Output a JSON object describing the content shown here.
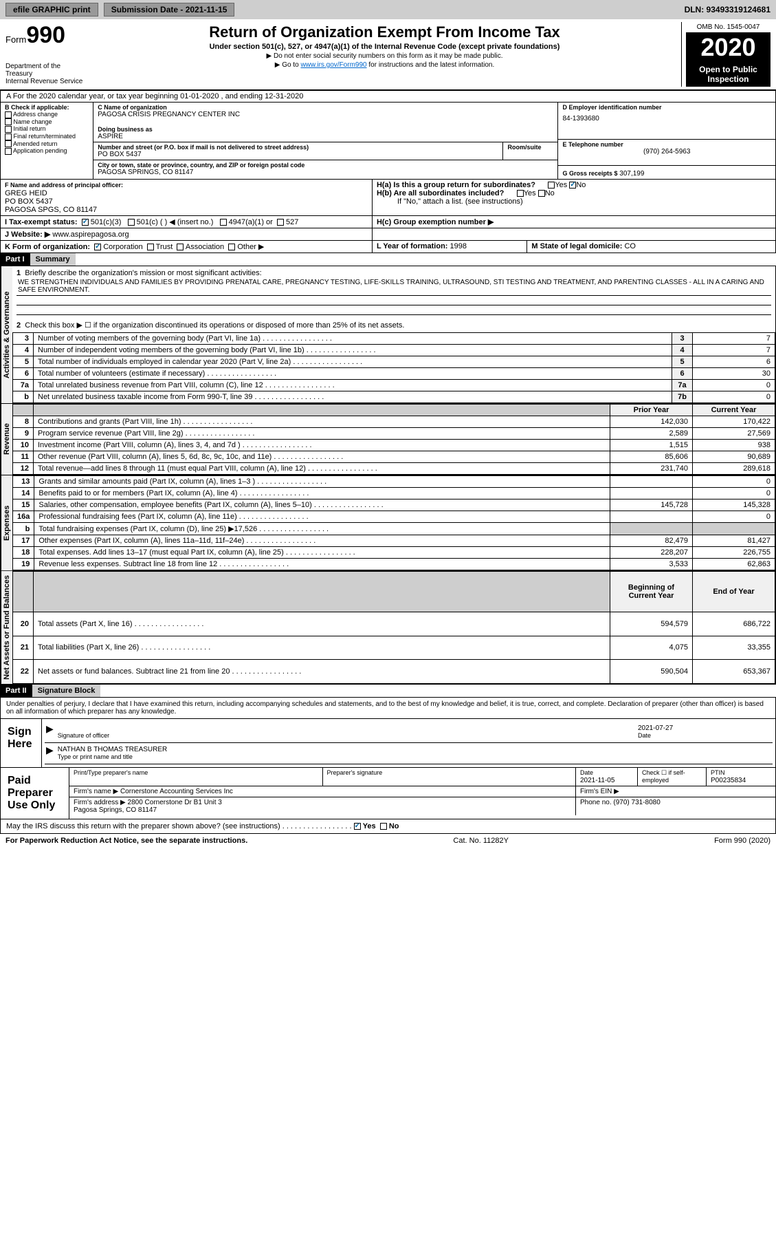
{
  "topbar": {
    "efile": "efile GRAPHIC print",
    "submission_label": "Submission Date - 2021-11-15",
    "dln_label": "DLN: 93493319124681"
  },
  "header": {
    "form_prefix": "Form",
    "form_number": "990",
    "dept": "Department of the Treasury\nInternal Revenue Service",
    "title": "Return of Organization Exempt From Income Tax",
    "subtitle": "Under section 501(c), 527, or 4947(a)(1) of the Internal Revenue Code (except private foundations)",
    "note1": "▶ Do not enter social security numbers on this form as it may be made public.",
    "note2_pre": "▶ Go to ",
    "note2_link": "www.irs.gov/Form990",
    "note2_post": " for instructions and the latest information.",
    "omb": "OMB No. 1545-0047",
    "year": "2020",
    "inspect": "Open to Public Inspection"
  },
  "sectionA": {
    "text_pre": "A For the 2020 calendar year, or tax year beginning ",
    "begin": "01-01-2020",
    "mid": " , and ending ",
    "end": "12-31-2020"
  },
  "secB": {
    "label": "B Check if applicable:",
    "items": [
      "Address change",
      "Name change",
      "Initial return",
      "Final return/terminated",
      "Amended return",
      "Application pending"
    ]
  },
  "secC": {
    "name_label": "C Name of organization",
    "name": "PAGOSA CRISIS PREGNANCY CENTER INC",
    "dba_label": "Doing business as",
    "dba": "ASPIRE",
    "addr_label": "Number and street (or P.O. box if mail is not delivered to street address)",
    "room_label": "Room/suite",
    "addr": "PO BOX 5437",
    "city_label": "City or town, state or province, country, and ZIP or foreign postal code",
    "city": "PAGOSA SPRINGS, CO  81147"
  },
  "secD": {
    "label": "D Employer identification number",
    "ein": "84-1393680"
  },
  "secE": {
    "label": "E Telephone number",
    "phone": "(970) 264-5963"
  },
  "secG": {
    "label": "G Gross receipts $",
    "amount": "307,199"
  },
  "secF": {
    "label": "F Name and address of principal officer:",
    "name": "GREG HEID",
    "addr1": "PO BOX 5437",
    "addr2": "PAGOSA SPGS, CO  81147"
  },
  "secH": {
    "ha_label": "H(a)  Is this a group return for subordinates?",
    "hb_label": "H(b)  Are all subordinates included?",
    "hb_note": "If \"No,\" attach a list. (see instructions)",
    "hc_label": "H(c)  Group exemption number ▶",
    "yes": "Yes",
    "no": "No"
  },
  "secI": {
    "label": "I    Tax-exempt status:",
    "opt1": "501(c)(3)",
    "opt2": "501(c) (  )",
    "opt2_insert": "◀ (insert no.)",
    "opt3": "4947(a)(1) or",
    "opt4": "527"
  },
  "secJ": {
    "label": "J   Website: ▶",
    "url": "www.aspirepagosa.org"
  },
  "secK": {
    "label": "K Form of organization:",
    "opts": [
      "Corporation",
      "Trust",
      "Association",
      "Other ▶"
    ]
  },
  "secL": {
    "label": "L Year of formation:",
    "val": "1998"
  },
  "secM": {
    "label": "M State of legal domicile:",
    "val": "CO"
  },
  "part1": {
    "hdr": "Part I",
    "title": "Summary",
    "q1": "Briefly describe the organization's mission or most significant activities:",
    "q1_text": "WE STRENGTHEN INDIVIDUALS AND FAMILIES BY PROVIDING PRENATAL CARE, PREGNANCY TESTING, LIFE-SKILLS TRAINING, ULTRASOUND, STI TESTING AND TREATMENT, AND PARENTING CLASSES - ALL IN A CARING AND SAFE ENVIRONMENT.",
    "q2": "Check this box ▶ ☐ if the organization discontinued its operations or disposed of more than 25% of its net assets.",
    "rows_gov": [
      {
        "n": "3",
        "d": "Number of voting members of the governing body (Part VI, line 1a)",
        "l": "3",
        "v": "7"
      },
      {
        "n": "4",
        "d": "Number of independent voting members of the governing body (Part VI, line 1b)",
        "l": "4",
        "v": "7"
      },
      {
        "n": "5",
        "d": "Total number of individuals employed in calendar year 2020 (Part V, line 2a)",
        "l": "5",
        "v": "6"
      },
      {
        "n": "6",
        "d": "Total number of volunteers (estimate if necessary)",
        "l": "6",
        "v": "30"
      },
      {
        "n": "7a",
        "d": "Total unrelated business revenue from Part VIII, column (C), line 12",
        "l": "7a",
        "v": "0"
      },
      {
        "n": "b",
        "d": "Net unrelated business taxable income from Form 990-T, line 39",
        "l": "7b",
        "v": "0"
      }
    ],
    "col_prior": "Prior Year",
    "col_current": "Current Year",
    "rows_rev": [
      {
        "n": "8",
        "d": "Contributions and grants (Part VIII, line 1h)",
        "p": "142,030",
        "c": "170,422"
      },
      {
        "n": "9",
        "d": "Program service revenue (Part VIII, line 2g)",
        "p": "2,589",
        "c": "27,569"
      },
      {
        "n": "10",
        "d": "Investment income (Part VIII, column (A), lines 3, 4, and 7d )",
        "p": "1,515",
        "c": "938"
      },
      {
        "n": "11",
        "d": "Other revenue (Part VIII, column (A), lines 5, 6d, 8c, 9c, 10c, and 11e)",
        "p": "85,606",
        "c": "90,689"
      },
      {
        "n": "12",
        "d": "Total revenue—add lines 8 through 11 (must equal Part VIII, column (A), line 12)",
        "p": "231,740",
        "c": "289,618"
      }
    ],
    "rows_exp": [
      {
        "n": "13",
        "d": "Grants and similar amounts paid (Part IX, column (A), lines 1–3 )",
        "p": "",
        "c": "0"
      },
      {
        "n": "14",
        "d": "Benefits paid to or for members (Part IX, column (A), line 4)",
        "p": "",
        "c": "0"
      },
      {
        "n": "15",
        "d": "Salaries, other compensation, employee benefits (Part IX, column (A), lines 5–10)",
        "p": "145,728",
        "c": "145,328"
      },
      {
        "n": "16a",
        "d": "Professional fundraising fees (Part IX, column (A), line 11e)",
        "p": "",
        "c": "0"
      },
      {
        "n": "b",
        "d": "Total fundraising expenses (Part IX, column (D), line 25) ▶17,526",
        "p": "shade",
        "c": "shade"
      },
      {
        "n": "17",
        "d": "Other expenses (Part IX, column (A), lines 11a–11d, 11f–24e)",
        "p": "82,479",
        "c": "81,427"
      },
      {
        "n": "18",
        "d": "Total expenses. Add lines 13–17 (must equal Part IX, column (A), line 25)",
        "p": "228,207",
        "c": "226,755"
      },
      {
        "n": "19",
        "d": "Revenue less expenses. Subtract line 18 from line 12",
        "p": "3,533",
        "c": "62,863"
      }
    ],
    "col_begin": "Beginning of Current Year",
    "col_end": "End of Year",
    "rows_net": [
      {
        "n": "20",
        "d": "Total assets (Part X, line 16)",
        "p": "594,579",
        "c": "686,722"
      },
      {
        "n": "21",
        "d": "Total liabilities (Part X, line 26)",
        "p": "4,075",
        "c": "33,355"
      },
      {
        "n": "22",
        "d": "Net assets or fund balances. Subtract line 21 from line 20",
        "p": "590,504",
        "c": "653,367"
      }
    ],
    "vlab_gov": "Activities & Governance",
    "vlab_rev": "Revenue",
    "vlab_exp": "Expenses",
    "vlab_net": "Net Assets or Fund Balances"
  },
  "part2": {
    "hdr": "Part II",
    "title": "Signature Block",
    "decl": "Under penalties of perjury, I declare that I have examined this return, including accompanying schedules and statements, and to the best of my knowledge and belief, it is true, correct, and complete. Declaration of preparer (other than officer) is based on all information of which preparer has any knowledge.",
    "sign_here": "Sign Here",
    "sig_officer": "Signature of officer",
    "sig_date": "2021-07-27",
    "date_label": "Date",
    "officer_name": "NATHAN B THOMAS  TREASURER",
    "type_label": "Type or print name and title",
    "paid_prep": "Paid Preparer Use Only",
    "prep_name_label": "Print/Type preparer's name",
    "prep_sig_label": "Preparer's signature",
    "prep_date_label": "Date",
    "prep_date": "2021-11-05",
    "self_emp": "Check ☐ if self-employed",
    "ptin_label": "PTIN",
    "ptin": "P00235834",
    "firm_name_label": "Firm's name    ▶",
    "firm_name": "Cornerstone Accounting Services Inc",
    "firm_ein_label": "Firm's EIN ▶",
    "firm_addr_label": "Firm's address ▶",
    "firm_addr": "2800 Cornerstone Dr B1 Unit 3\nPagosa Springs, CO  81147",
    "phone_label": "Phone no.",
    "phone": "(970) 731-8080",
    "discuss": "May the IRS discuss this return with the preparer shown above? (see instructions)"
  },
  "footer": {
    "left": "For Paperwork Reduction Act Notice, see the separate instructions.",
    "mid": "Cat. No. 11282Y",
    "right": "Form 990 (2020)"
  }
}
